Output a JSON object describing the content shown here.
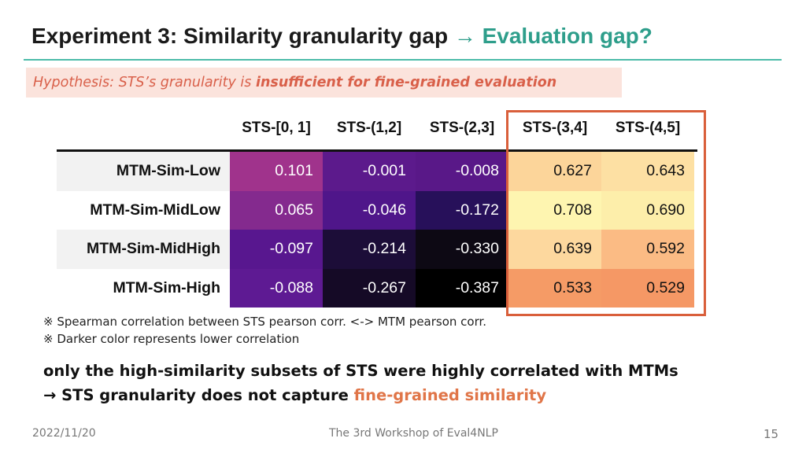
{
  "slide": {
    "title_main": "Experiment 3: Similarity granularity gap",
    "title_arrow": "→",
    "title_accent": "Evaluation gap?",
    "hypothesis_prefix": "Hypothesis: STS’s granularity is ",
    "hypothesis_emphasis": "insufficient for fine-grained evaluation",
    "notes": [
      "※ Spearman correlation between STS pearson corr. <-> MTM pearson corr.",
      "※ Darker color represents lower correlation"
    ],
    "conclusion_line1": "only the high-similarity subsets of STS were highly correlated with MTMs",
    "conclusion_line2_prefix": "→ STS granularity does not capture ",
    "conclusion_line2_emphasis": "fine-grained similarity",
    "footer_date": "2022/11/20",
    "footer_workshop": "The 3rd Workshop of Eval4NLP",
    "page_number": "15"
  },
  "heatmap": {
    "columns": [
      "STS-[0, 1]",
      "STS-(1,2]",
      "STS-(2,3]",
      "STS-(3,4]",
      "STS-(4,5]"
    ],
    "highlighted_columns": [
      "STS-(3,4]",
      "STS-(4,5]"
    ],
    "rows": [
      {
        "label": "MTM-Sim-Low",
        "values": [
          "0.101",
          "-0.001",
          "-0.008",
          "0.627",
          "0.643"
        ]
      },
      {
        "label": "MTM-Sim-MidLow",
        "values": [
          "0.065",
          "-0.046",
          "-0.172",
          "0.708",
          "0.690"
        ]
      },
      {
        "label": "MTM-Sim-MidHigh",
        "values": [
          "-0.097",
          "-0.214",
          "-0.330",
          "0.639",
          "0.592"
        ]
      },
      {
        "label": "MTM-Sim-High",
        "values": [
          "-0.088",
          "-0.267",
          "-0.387",
          "0.533",
          "0.529"
        ]
      }
    ],
    "colors": {
      "0.101": "#a0338c",
      "-0.001": "#5c1a8c",
      "-0.008": "#591888",
      "0.065": "#842a8e",
      "-0.046": "#4f168a",
      "-0.172": "#27105a",
      "-0.097": "#58178f",
      "-0.214": "#1c0d38",
      "-0.330": "#0d0914",
      "-0.088": "#5e1a93",
      "-0.267": "#150a26",
      "-0.387": "#000000",
      "0.627": "#fcd59a",
      "0.643": "#fde0a3",
      "0.708": "#fef5b0",
      "0.690": "#fdeeaa",
      "0.639": "#fdd89e",
      "0.592": "#fbbb84",
      "0.533": "#f59b66",
      "0.529": "#f59865"
    }
  }
}
